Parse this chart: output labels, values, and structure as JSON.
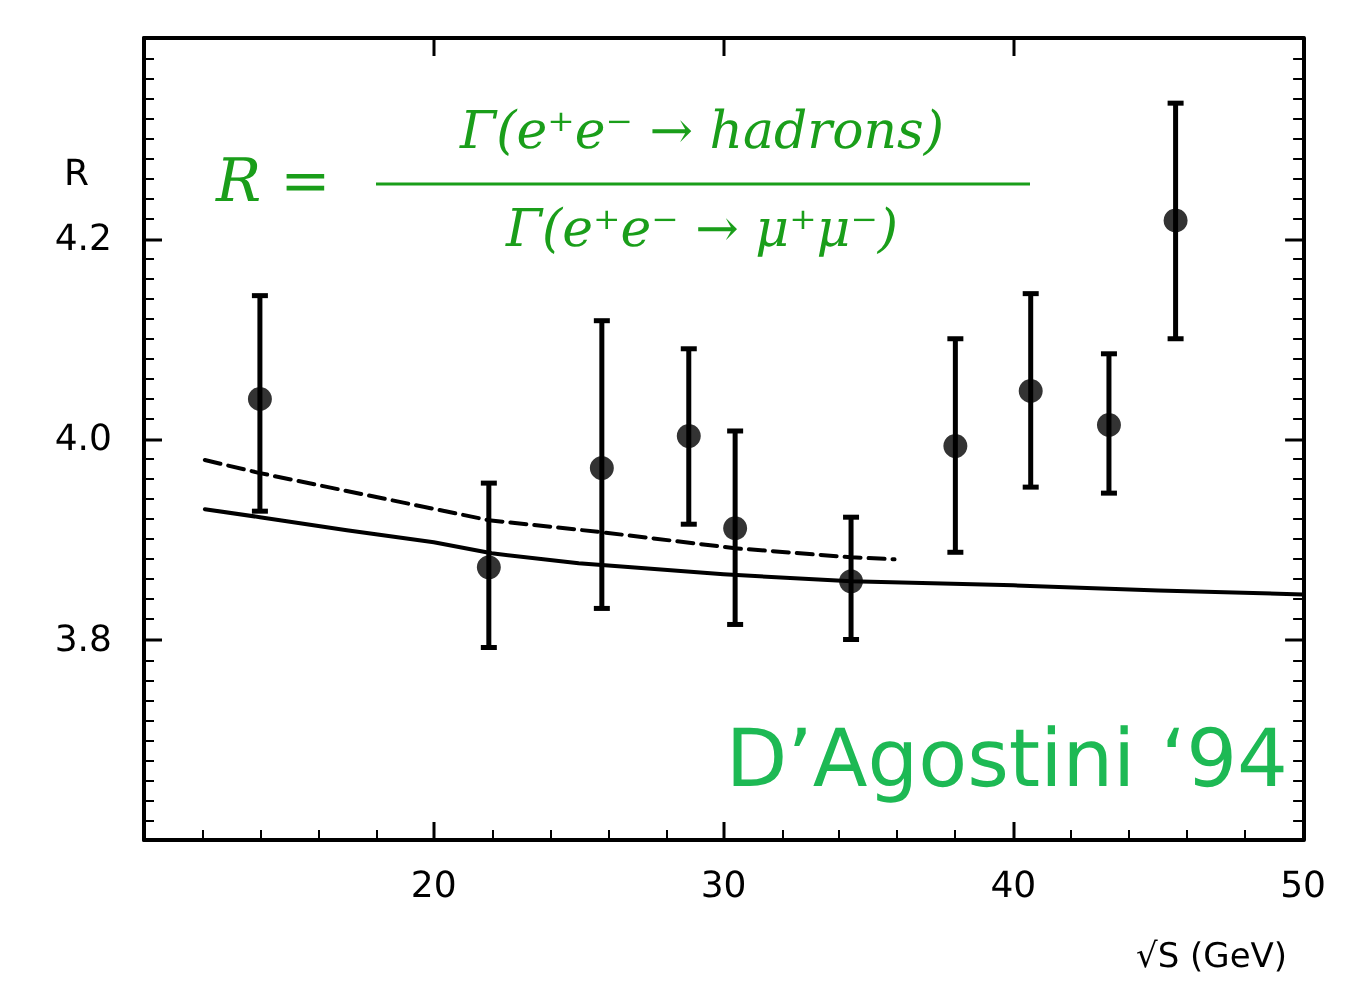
{
  "chart_data": {
    "type": "scatter",
    "xlabel": "√S (GeV)",
    "ylabel": "R",
    "xlim": [
      10,
      50
    ],
    "ylim": [
      3.6,
      4.4
    ],
    "xticks": [
      20,
      30,
      40,
      50
    ],
    "yticks": [
      {
        "value": 3.8,
        "label": "3.8"
      },
      {
        "value": 4,
        "label": "4.0"
      },
      {
        "value": 4.2,
        "label": "4.2"
      }
    ],
    "grid": false,
    "marker": "circle",
    "annotations": [
      "R =",
      "Γ(e⁺e⁻ → hadrons)",
      "Γ(e⁺e⁻ → μ⁺μ⁻)",
      "D’Agostini ‘94"
    ],
    "series": [
      {
        "color": "#000000",
        "x": [
          14.0,
          21.9,
          25.8,
          28.8,
          30.4,
          34.4,
          38.0,
          40.6,
          43.3,
          45.6
        ],
        "values": [
          4.04,
          3.872,
          3.971,
          4.003,
          3.911,
          3.858,
          3.993,
          4.048,
          4.014,
          4.218
        ],
        "errors": [
          [
            3.928,
            4.143
          ],
          [
            3.792,
            3.956
          ],
          [
            3.831,
            4.118
          ],
          [
            3.915,
            4.09
          ],
          [
            3.815,
            4.008
          ],
          [
            3.8,
            3.922
          ],
          [
            3.887,
            4.1
          ],
          [
            3.952,
            4.145
          ],
          [
            3.946,
            4.085
          ],
          [
            4.1,
            4.335
          ]
        ]
      },
      {
        "type": "line",
        "color": "#000000",
        "line_style": "solid",
        "marker": "none",
        "x": [
          12.1,
          14,
          17,
          20,
          22,
          25,
          30,
          34.4,
          40,
          45,
          50
        ],
        "values": [
          3.93,
          3.922,
          3.909,
          3.897,
          3.886,
          3.876,
          3.865,
          3.858,
          3.854,
          3.849,
          3.845
        ]
      },
      {
        "type": "line",
        "color": "#000000",
        "line_style": "dashed",
        "marker": "none",
        "x": [
          12.1,
          14,
          21.9,
          25.8,
          30.4,
          34.4,
          35.9
        ],
        "values": [
          3.979,
          3.966,
          3.919,
          3.907,
          3.891,
          3.882,
          3.88
        ]
      }
    ]
  }
}
